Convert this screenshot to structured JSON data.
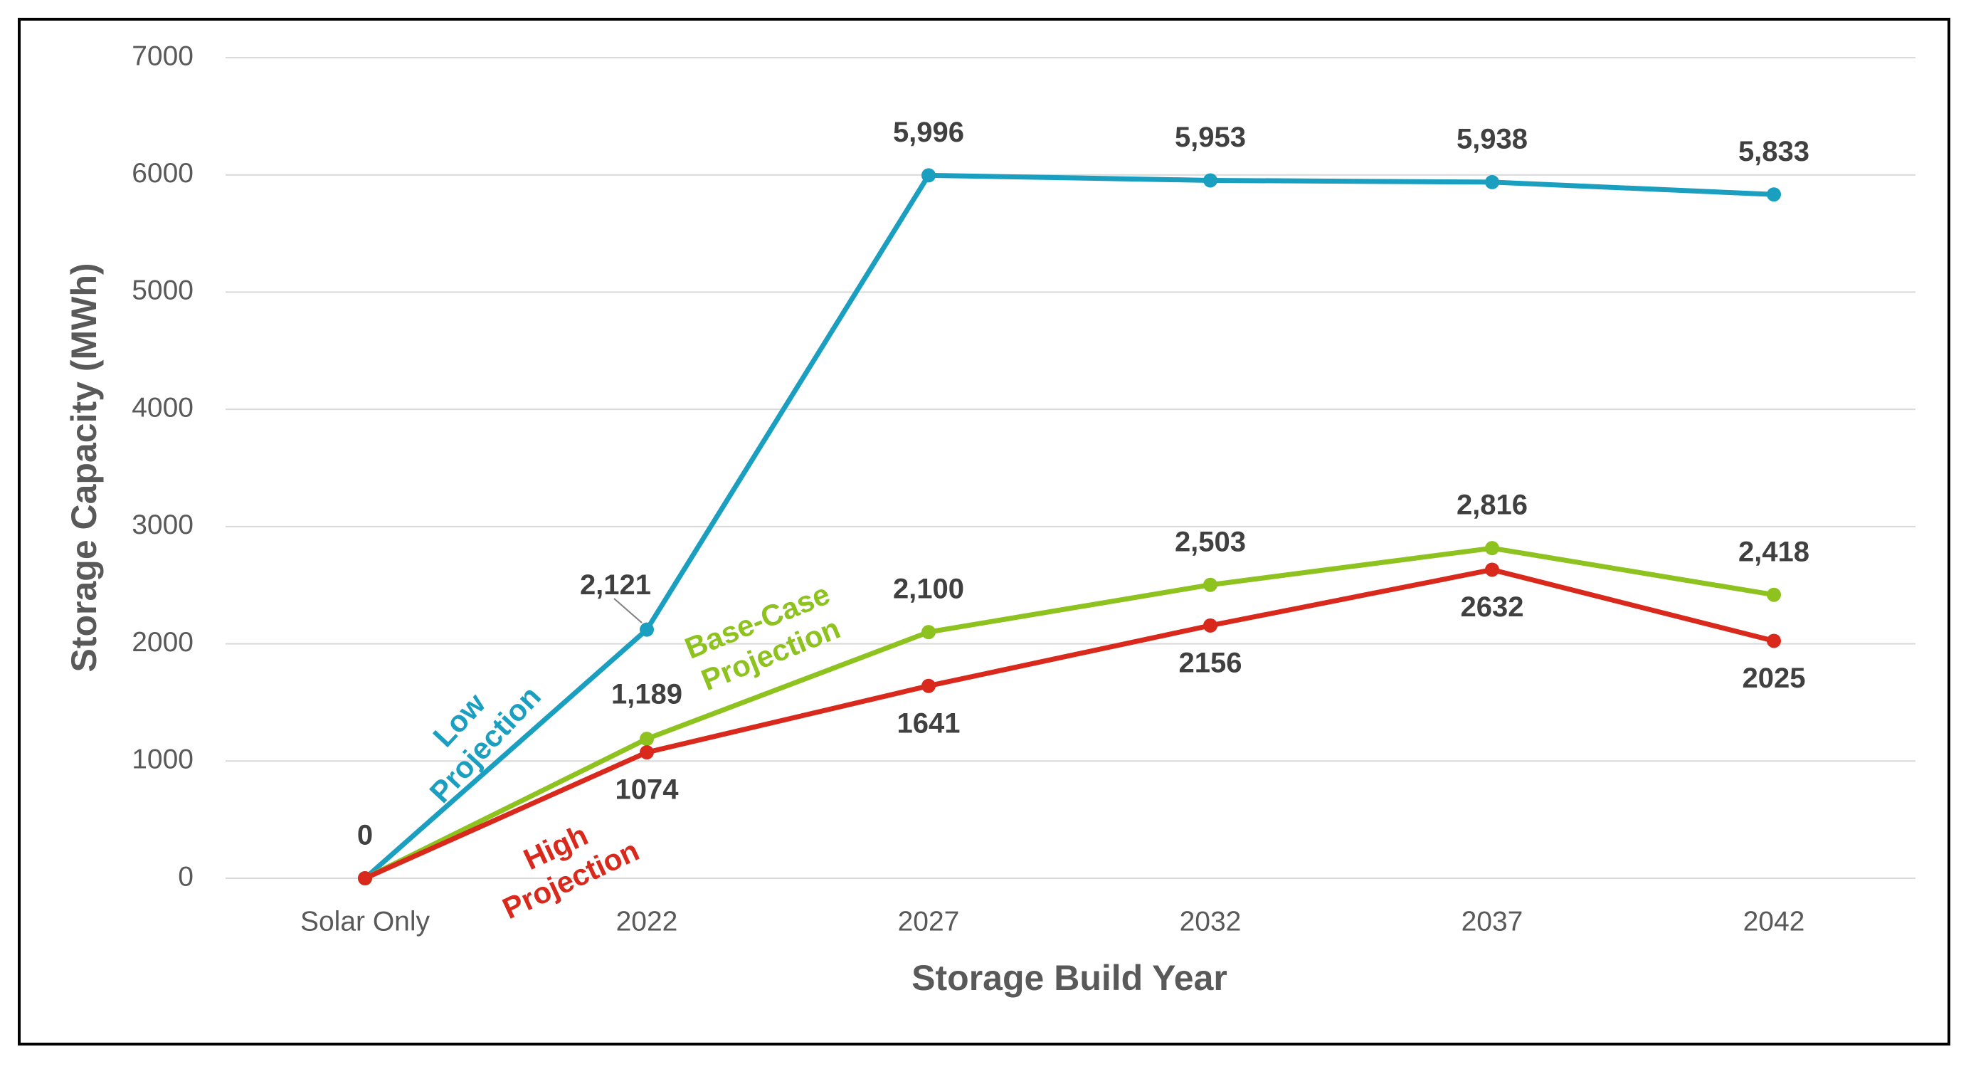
{
  "chart_data": {
    "type": "line",
    "x_label": "Storage Build Year",
    "y_label": "Storage Capacity (MWh)",
    "categories": [
      "Solar Only",
      "2022",
      "2027",
      "2032",
      "2037",
      "2042"
    ],
    "series": [
      {
        "name": "Low Projection",
        "color": "#1a9fc0",
        "values": [
          0,
          2121,
          5996,
          5953,
          5938,
          5833
        ],
        "value_labels": [
          "0",
          "2,121",
          "5,996",
          "5,953",
          "5,938",
          "5,833"
        ]
      },
      {
        "name": "Base-Case Projection",
        "color": "#8dc21f",
        "values": [
          0,
          1189,
          2100,
          2503,
          2816,
          2418
        ],
        "value_labels": [
          null,
          "1,189",
          "2,100",
          "2,503",
          "2,816",
          "2,418"
        ]
      },
      {
        "name": "High Projection",
        "color": "#d9291c",
        "values": [
          0,
          1074,
          1641,
          2156,
          2632,
          2025
        ],
        "value_labels": [
          null,
          "1074",
          "1641",
          "2156",
          "2632",
          "2025"
        ]
      }
    ],
    "ylim": [
      0,
      7000
    ],
    "yticks": [
      0,
      1000,
      2000,
      3000,
      4000,
      5000,
      6000,
      7000
    ],
    "grid": true
  }
}
